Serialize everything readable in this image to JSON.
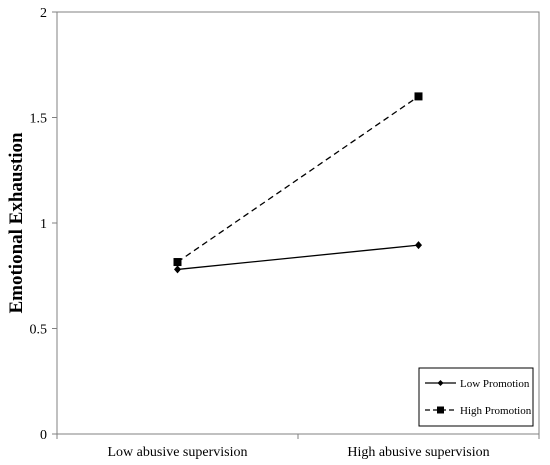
{
  "chart_data": {
    "type": "line",
    "categories": [
      "Low abusive supervision",
      "High abusive supervision"
    ],
    "series": [
      {
        "name": "Low Promotion",
        "values": [
          0.78,
          0.895
        ],
        "line_style": "solid",
        "marker": "diamond",
        "color": "#000000"
      },
      {
        "name": "High Promotion",
        "values": [
          0.815,
          1.6
        ],
        "line_style": "dashed",
        "marker": "square",
        "color": "#000000"
      }
    ],
    "title": "",
    "xlabel": "",
    "ylabel": "Emotional Exhaustion",
    "ylim": [
      0,
      2
    ],
    "yticks": [
      0,
      0.5,
      1,
      1.5,
      2
    ],
    "ytick_labels": [
      "0",
      "0.5",
      "1",
      "1.5",
      "2"
    ],
    "grid": false,
    "legend": "bottom-right"
  }
}
